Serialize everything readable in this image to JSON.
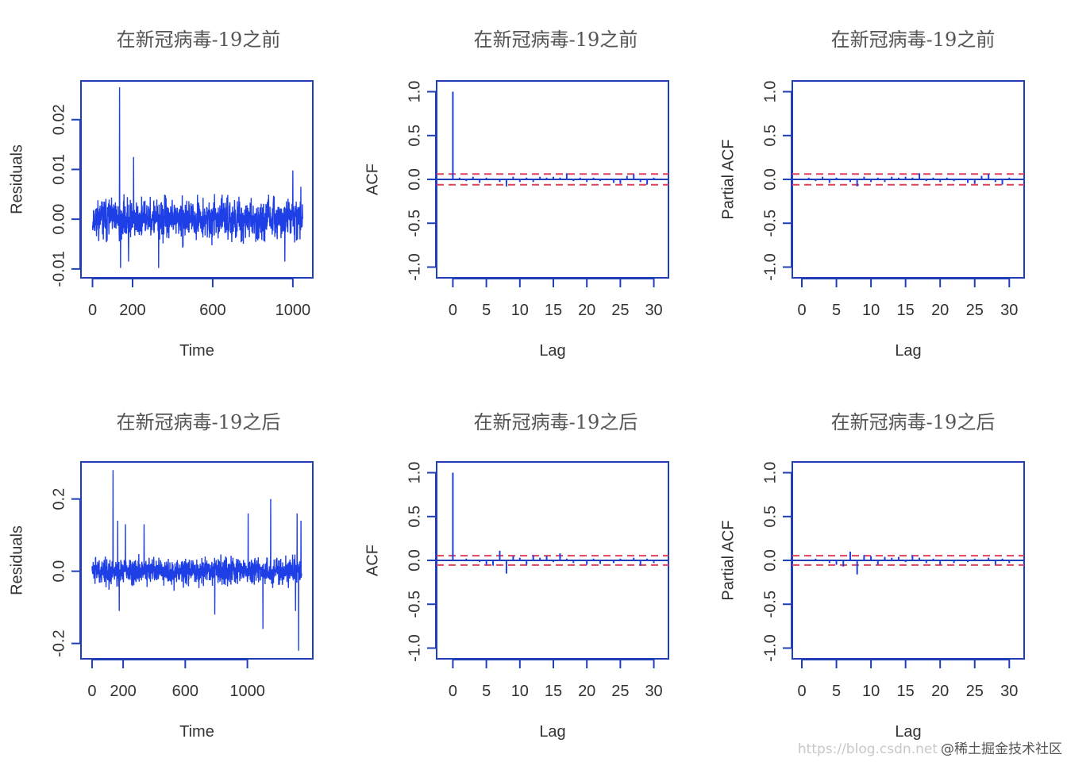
{
  "colors": {
    "series": "#1f3fe6",
    "axis": "#1f3fb8",
    "ci": "#e0405a",
    "text": "#333333"
  },
  "watermark": {
    "url": "https://blog.csdn.net",
    "text": "@稀土掘金技术社区"
  },
  "chart_data": [
    {
      "type": "line",
      "panel": "residuals-before",
      "title": "在新冠病毒-19之前",
      "xlabel": "Time",
      "ylabel": "Residuals",
      "xlim": [
        -10,
        1060
      ],
      "ylim": [
        -0.0105,
        0.0265
      ],
      "xticks": [
        0,
        200,
        600,
        1000
      ],
      "xtick_labels": [
        "0",
        "200",
        "600",
        "1000"
      ],
      "yticks": [
        -0.01,
        0.0,
        0.01,
        0.02
      ],
      "ytick_labels": [
        "-0.01",
        "0.00",
        "0.01",
        "0.02"
      ],
      "n": 1050,
      "seed": 11,
      "sd": 0.0019,
      "spikes": [
        [
          135,
          0.0265
        ],
        [
          140,
          -0.0098
        ],
        [
          205,
          0.0125
        ],
        [
          330,
          -0.0098
        ],
        [
          180,
          -0.0085
        ],
        [
          1000,
          0.0098
        ],
        [
          960,
          -0.0085
        ],
        [
          1040,
          0.0065
        ]
      ]
    },
    {
      "type": "bar",
      "panel": "acf-before",
      "title": "在新冠病毒-19之前",
      "xlabel": "Lag",
      "ylabel": "ACF",
      "xlim": [
        -1,
        31
      ],
      "ylim": [
        -1.05,
        1.05
      ],
      "xticks": [
        0,
        5,
        10,
        15,
        20,
        25,
        30
      ],
      "xtick_labels": [
        "0",
        "5",
        "10",
        "15",
        "20",
        "25",
        "30"
      ],
      "yticks": [
        -1.0,
        -0.5,
        0.0,
        0.5,
        1.0
      ],
      "ytick_labels": [
        "-1.0",
        "-0.5",
        "0.0",
        "0.5",
        "1.0"
      ],
      "ci": 0.061,
      "lags": [
        0,
        1,
        2,
        3,
        4,
        5,
        6,
        7,
        8,
        9,
        10,
        11,
        12,
        13,
        14,
        15,
        16,
        17,
        18,
        19,
        20,
        21,
        22,
        23,
        24,
        25,
        26,
        27,
        28,
        29,
        30
      ],
      "values": [
        1.0,
        0.02,
        -0.02,
        0.03,
        -0.04,
        0.02,
        0.01,
        -0.03,
        -0.08,
        0.03,
        -0.03,
        0.02,
        -0.03,
        0.03,
        0.02,
        0.03,
        0.02,
        0.07,
        -0.02,
        0.02,
        -0.03,
        0.02,
        -0.02,
        0.01,
        -0.04,
        -0.05,
        0.04,
        0.06,
        -0.03,
        -0.06,
        0.02
      ]
    },
    {
      "type": "bar",
      "panel": "pacf-before",
      "title": "在新冠病毒-19之前",
      "xlabel": "Lag",
      "ylabel": "Partial ACF",
      "xlim": [
        0,
        31
      ],
      "ylim": [
        -1.05,
        1.05
      ],
      "xticks": [
        0,
        5,
        10,
        15,
        20,
        25,
        30
      ],
      "xtick_labels": [
        "0",
        "5",
        "10",
        "15",
        "20",
        "25",
        "30"
      ],
      "yticks": [
        -1.0,
        -0.5,
        0.0,
        0.5,
        1.0
      ],
      "ytick_labels": [
        "-1.0",
        "-0.5",
        "0.0",
        "0.5",
        "1.0"
      ],
      "ci": 0.061,
      "lags": [
        1,
        2,
        3,
        4,
        5,
        6,
        7,
        8,
        9,
        10,
        11,
        12,
        13,
        14,
        15,
        16,
        17,
        18,
        19,
        20,
        21,
        22,
        23,
        24,
        25,
        26,
        27,
        28,
        29,
        30
      ],
      "values": [
        0.02,
        -0.02,
        0.03,
        -0.04,
        0.02,
        0.01,
        -0.03,
        -0.08,
        0.03,
        -0.03,
        0.02,
        -0.03,
        0.03,
        0.02,
        0.03,
        0.02,
        0.07,
        -0.02,
        0.02,
        -0.03,
        0.02,
        -0.02,
        0.01,
        -0.04,
        -0.05,
        0.04,
        0.06,
        -0.03,
        -0.06,
        0.02
      ]
    },
    {
      "type": "line",
      "panel": "residuals-after",
      "title": "在新冠病毒-19之后",
      "xlabel": "Time",
      "ylabel": "Residuals",
      "xlim": [
        -10,
        1370
      ],
      "ylim": [
        -0.225,
        0.285
      ],
      "xticks": [
        0,
        200,
        600,
        1000
      ],
      "xtick_labels": [
        "0",
        "200",
        "600",
        "1000"
      ],
      "yticks": [
        -0.2,
        0.0,
        0.2
      ],
      "ytick_labels": [
        "-0.2",
        "0.0",
        "0.2"
      ],
      "n": 1350,
      "seed": 29,
      "sd": 0.017,
      "spikes": [
        [
          135,
          0.28
        ],
        [
          165,
          0.14
        ],
        [
          215,
          0.13
        ],
        [
          175,
          -0.11
        ],
        [
          335,
          0.13
        ],
        [
          1005,
          0.16
        ],
        [
          1150,
          0.2
        ],
        [
          1100,
          -0.16
        ],
        [
          1330,
          -0.22
        ],
        [
          1320,
          0.16
        ],
        [
          1345,
          0.14
        ],
        [
          790,
          -0.12
        ],
        [
          1310,
          -0.11
        ]
      ]
    },
    {
      "type": "bar",
      "panel": "acf-after",
      "title": "在新冠病毒-19之后",
      "xlabel": "Lag",
      "ylabel": "ACF",
      "xlim": [
        -1,
        31
      ],
      "ylim": [
        -1.05,
        1.05
      ],
      "xticks": [
        0,
        5,
        10,
        15,
        20,
        25,
        30
      ],
      "xtick_labels": [
        "0",
        "5",
        "10",
        "15",
        "20",
        "25",
        "30"
      ],
      "yticks": [
        -1.0,
        -0.5,
        0.0,
        0.5,
        1.0
      ],
      "ytick_labels": [
        "-1.0",
        "-0.5",
        "0.0",
        "0.5",
        "1.0"
      ],
      "ci": 0.053,
      "lags": [
        0,
        1,
        2,
        3,
        4,
        5,
        6,
        7,
        8,
        9,
        10,
        11,
        12,
        13,
        14,
        15,
        16,
        17,
        18,
        19,
        20,
        21,
        22,
        23,
        24,
        25,
        26,
        27,
        28,
        29,
        30
      ],
      "values": [
        1.0,
        0.01,
        0.02,
        -0.01,
        -0.02,
        -0.05,
        -0.06,
        0.11,
        -0.15,
        0.05,
        0.03,
        -0.05,
        0.06,
        0.03,
        0.05,
        -0.02,
        0.08,
        0.02,
        -0.03,
        0.01,
        -0.05,
        0.02,
        -0.04,
        0.01,
        -0.03,
        0.02,
        0.01,
        0.03,
        -0.06,
        0.02,
        -0.03
      ]
    },
    {
      "type": "bar",
      "panel": "pacf-after",
      "title": "在新冠病毒-19之后",
      "xlabel": "Lag",
      "ylabel": "Partial ACF",
      "xlim": [
        0,
        31
      ],
      "ylim": [
        -1.05,
        1.05
      ],
      "xticks": [
        0,
        5,
        10,
        15,
        20,
        25,
        30
      ],
      "xtick_labels": [
        "0",
        "5",
        "10",
        "15",
        "20",
        "25",
        "30"
      ],
      "yticks": [
        -1.0,
        -0.5,
        0.0,
        0.5,
        1.0
      ],
      "ytick_labels": [
        "-1.0",
        "-0.5",
        "0.0",
        "0.5",
        "1.0"
      ],
      "ci": 0.053,
      "lags": [
        1,
        2,
        3,
        4,
        5,
        6,
        7,
        8,
        9,
        10,
        11,
        12,
        13,
        14,
        15,
        16,
        17,
        18,
        19,
        20,
        21,
        22,
        23,
        24,
        25,
        26,
        27,
        28,
        29,
        30
      ],
      "values": [
        0.01,
        0.02,
        -0.01,
        -0.03,
        -0.05,
        -0.07,
        0.1,
        -0.16,
        0.06,
        0.05,
        -0.05,
        0.04,
        0.03,
        0.04,
        -0.02,
        0.06,
        0.03,
        -0.03,
        0.02,
        -0.05,
        0.01,
        -0.03,
        0.01,
        -0.02,
        0.02,
        0.01,
        0.03,
        -0.05,
        0.02,
        -0.03
      ]
    }
  ]
}
